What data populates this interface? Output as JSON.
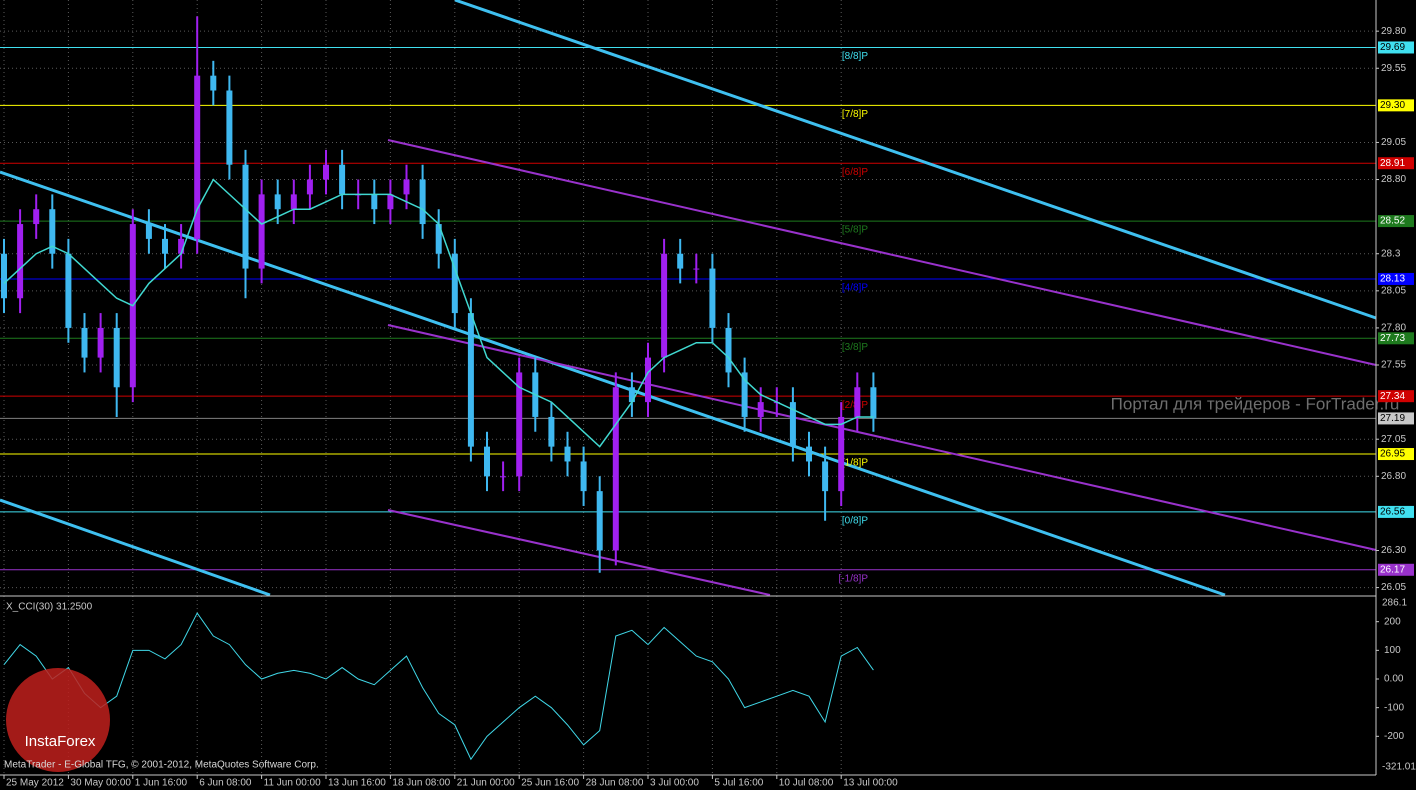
{
  "chart_data": [
    {
      "type": "candlestick",
      "categories": [
        "25 May 2012",
        null,
        null,
        null,
        "30 May 00:00",
        null,
        null,
        null,
        "1 Jun 16:00",
        null,
        null,
        null,
        "6 Jun 08:00",
        null,
        null,
        null,
        "11 Jun 00:00",
        null,
        null,
        null,
        "13 Jun 16:00",
        null,
        null,
        null,
        "18 Jun 08:00",
        null,
        null,
        null,
        "21 Jun 00:00",
        null,
        null,
        null,
        "25 Jun 16:00",
        null,
        null,
        null,
        "28 Jun 08:00",
        null,
        null,
        null,
        "3 Jul 00:00",
        null,
        null,
        null,
        "5 Jul 16:00",
        null,
        null,
        null,
        "10 Jul 08:00",
        null,
        null,
        null,
        "13 Jul 00:00",
        null,
        null
      ],
      "open": [
        28.3,
        28.0,
        28.5,
        28.6,
        28.3,
        27.8,
        27.6,
        27.8,
        27.4,
        28.5,
        28.4,
        28.3,
        28.4,
        29.5,
        29.4,
        28.9,
        28.2,
        28.7,
        28.6,
        28.7,
        28.8,
        28.9,
        28.7,
        28.7,
        28.6,
        28.7,
        28.8,
        28.5,
        28.3,
        27.9,
        27.0,
        26.8,
        26.8,
        27.5,
        27.2,
        27.0,
        26.9,
        26.7,
        26.3,
        27.4,
        27.3,
        27.6,
        28.3,
        28.2,
        28.2,
        27.8,
        27.5,
        27.2,
        27.3,
        27.3,
        27.0,
        26.9,
        26.7,
        27.2,
        27.4
      ],
      "high": [
        28.4,
        28.6,
        28.7,
        28.7,
        28.4,
        27.9,
        27.9,
        27.9,
        28.6,
        28.6,
        28.5,
        28.5,
        29.9,
        29.6,
        29.5,
        29.0,
        28.8,
        28.8,
        28.8,
        28.9,
        29.0,
        29.0,
        28.8,
        28.8,
        28.8,
        28.9,
        28.9,
        28.6,
        28.4,
        28.0,
        27.1,
        26.9,
        27.6,
        27.6,
        27.3,
        27.1,
        27.0,
        26.8,
        27.5,
        27.5,
        27.7,
        28.4,
        28.4,
        28.3,
        28.3,
        27.9,
        27.6,
        27.4,
        27.4,
        27.4,
        27.1,
        27.0,
        27.3,
        27.5,
        27.5
      ],
      "low": [
        27.9,
        27.9,
        28.4,
        28.2,
        27.7,
        27.5,
        27.5,
        27.2,
        27.3,
        28.3,
        28.2,
        28.2,
        28.3,
        29.3,
        28.8,
        28.0,
        28.1,
        28.5,
        28.5,
        28.6,
        28.7,
        28.6,
        28.6,
        28.5,
        28.5,
        28.6,
        28.4,
        28.2,
        27.8,
        26.9,
        26.7,
        26.7,
        26.7,
        27.1,
        26.9,
        26.8,
        26.6,
        26.15,
        26.2,
        27.2,
        27.2,
        27.5,
        28.1,
        28.1,
        27.7,
        27.4,
        27.1,
        27.1,
        27.2,
        26.9,
        26.8,
        26.5,
        26.6,
        27.1,
        27.1
      ],
      "close": [
        28.0,
        28.5,
        28.6,
        28.3,
        27.8,
        27.6,
        27.8,
        27.4,
        28.5,
        28.4,
        28.3,
        28.4,
        29.5,
        29.4,
        28.9,
        28.2,
        28.7,
        28.6,
        28.7,
        28.8,
        28.9,
        28.7,
        28.7,
        28.6,
        28.7,
        28.8,
        28.5,
        28.3,
        27.9,
        27.0,
        26.8,
        26.8,
        27.5,
        27.2,
        27.0,
        26.9,
        26.7,
        26.3,
        27.4,
        27.3,
        27.6,
        28.3,
        28.2,
        28.2,
        27.8,
        27.5,
        27.2,
        27.3,
        27.3,
        27.0,
        26.9,
        26.7,
        27.2,
        27.4,
        27.19
      ],
      "up_color": "#a020f0",
      "down_color": "#3fb8f0",
      "ma": {
        "color": "#40d8d0",
        "values": [
          28.1,
          28.2,
          28.3,
          28.35,
          28.3,
          28.2,
          28.1,
          28.0,
          27.95,
          28.1,
          28.2,
          28.3,
          28.6,
          28.8,
          28.7,
          28.6,
          28.5,
          28.55,
          28.6,
          28.6,
          28.65,
          28.7,
          28.7,
          28.7,
          28.7,
          28.65,
          28.6,
          28.5,
          28.2,
          27.9,
          27.6,
          27.5,
          27.4,
          27.35,
          27.3,
          27.2,
          27.1,
          27.0,
          27.15,
          27.3,
          27.5,
          27.6,
          27.65,
          27.7,
          27.7,
          27.6,
          27.45,
          27.35,
          27.3,
          27.25,
          27.2,
          27.15,
          27.15,
          27.2,
          27.2
        ]
      },
      "ylim": [
        26.0,
        30.01
      ],
      "yticks": [
        {
          "value": 29.8,
          "label": "29.80"
        },
        {
          "value": 29.55,
          "label": "29.55"
        },
        {
          "value": 29.05,
          "label": "29.05"
        },
        {
          "value": 28.8,
          "label": "28.80"
        },
        28.3,
        28.05,
        {
          "value": 27.8,
          "label": "27.80"
        },
        27.55,
        27.05,
        {
          "value": 26.8,
          "label": "26.80"
        },
        {
          "value": 26.3,
          "label": "26.30"
        },
        26.05
      ],
      "levels": [
        {
          "name": "[8/8]P",
          "value": 29.69,
          "price_label": "29.69",
          "color": "#40e0f0"
        },
        {
          "name": "[7/8]P",
          "value": 29.3,
          "price_label": "29.30",
          "color": "#ffff00"
        },
        {
          "name": "[6/8]P",
          "value": 28.91,
          "price_label": "28.91",
          "color": "#d00000"
        },
        {
          "name": "[5/8]P",
          "value": 28.52,
          "price_label": "28.52",
          "color": "#1e7a1e"
        },
        {
          "name": "[4/8]P",
          "value": 28.13,
          "price_label": "28.13",
          "color": "#0000ff"
        },
        {
          "name": "[3/8]P",
          "value": 27.73,
          "price_label": "27.73",
          "color": "#1e7a1e"
        },
        {
          "name": "[2/8]P",
          "value": 27.34,
          "price_label": "27.34",
          "color": "#d00000"
        },
        {
          "name": "[1/8]P",
          "value": 26.95,
          "price_label": "26.95",
          "color": "#ffff00"
        },
        {
          "name": "[0/8]P",
          "value": 26.56,
          "price_label": "26.56",
          "color": "#40e0f0"
        },
        {
          "name": "[-1/8]P",
          "value": 26.17,
          "price_label": "26.17",
          "color": "#9932cc"
        }
      ],
      "last_price": 27.19,
      "grid": true,
      "watermark": "Портал для трейдеров - ForTrader.ru",
      "footer": "MetaTrader - E-Global TFG, © 2001-2012, MetaQuotes Software Corp.",
      "logo_text": "InstaForex"
    },
    {
      "type": "line",
      "title": "X_CCI(30) 31.2500",
      "color": "#40d8e8",
      "values": [
        50,
        120,
        80,
        0,
        40,
        -50,
        -100,
        -60,
        100,
        100,
        70,
        120,
        230,
        150,
        120,
        50,
        0,
        20,
        30,
        20,
        0,
        40,
        0,
        -20,
        30,
        80,
        -30,
        -120,
        -160,
        -280,
        -200,
        -150,
        -100,
        -60,
        -100,
        -160,
        -230,
        -180,
        150,
        170,
        120,
        180,
        130,
        80,
        60,
        0,
        -100,
        -80,
        -60,
        -40,
        -60,
        -150,
        80,
        110,
        31.25
      ],
      "ylim": [
        -321.019,
        286.1
      ],
      "yticks": [
        200,
        100,
        {
          "value": 0,
          "label": "0.00"
        },
        -100,
        -200
      ]
    }
  ]
}
